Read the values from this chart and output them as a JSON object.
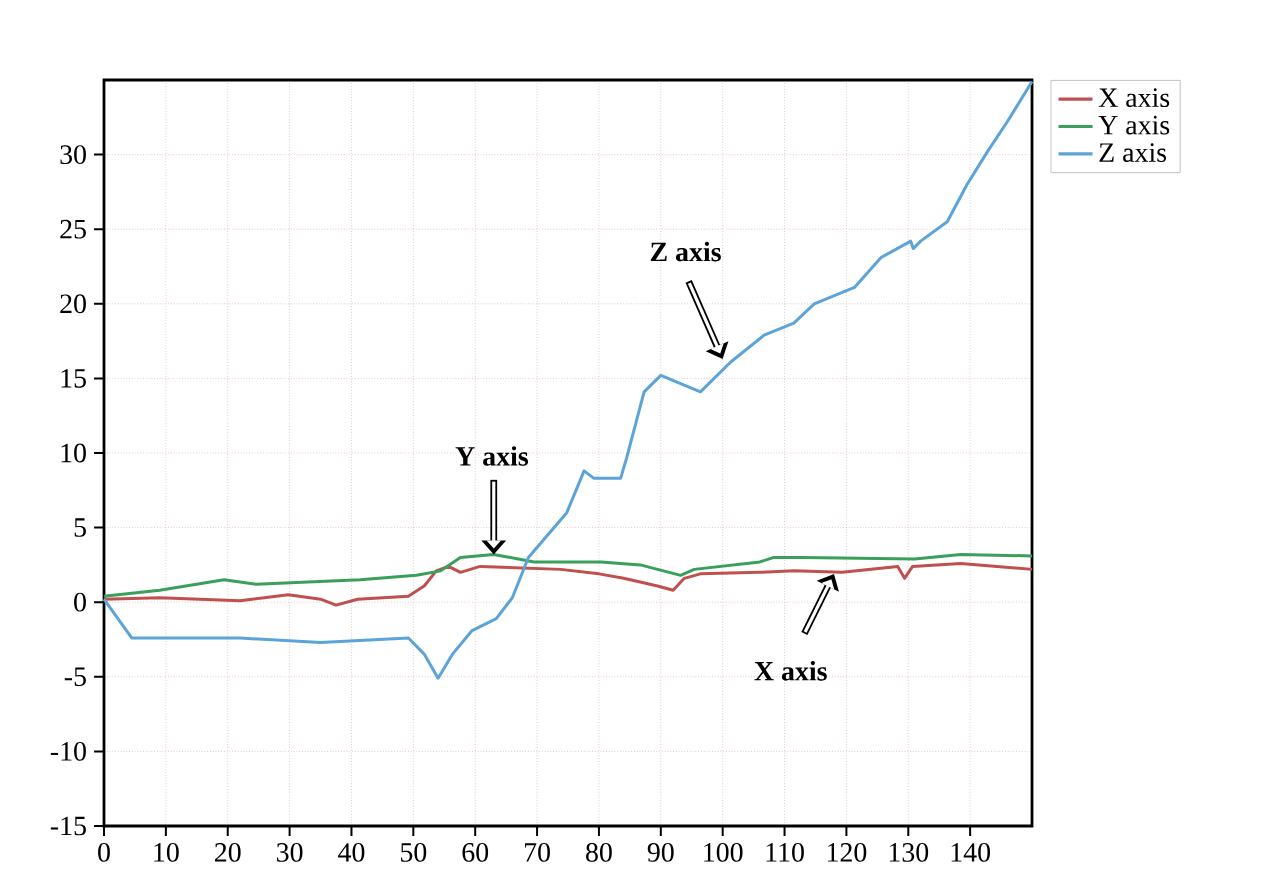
{
  "chart_data": {
    "type": "line",
    "xlim": [
      0,
      150
    ],
    "ylim": [
      -15,
      35
    ],
    "xticks": [
      0,
      10,
      20,
      30,
      40,
      50,
      60,
      70,
      80,
      90,
      100,
      110,
      120,
      130,
      140
    ],
    "yticks": [
      -15,
      -10,
      -5,
      0,
      5,
      10,
      15,
      20,
      25,
      30
    ],
    "grid": true,
    "legend": "top right",
    "line_style": "solid",
    "marker": "none",
    "series": [
      {
        "name": "X axis",
        "color": "#c0504d",
        "x": [
          0,
          9,
          22,
          29.8,
          35,
          37.5,
          41,
          49.2,
          51.8,
          53.7,
          55.7,
          57.6,
          60.8,
          73.8,
          80,
          84,
          89.3,
          92,
          93.8,
          96.4,
          106,
          111.5,
          119.3,
          128.3,
          129.4,
          130.7,
          138.5,
          150
        ],
        "values": [
          0.2,
          0.3,
          0.1,
          0.5,
          0.2,
          -0.2,
          0.2,
          0.4,
          1.1,
          2.1,
          2.4,
          2.0,
          2.4,
          2.2,
          1.9,
          1.6,
          1.1,
          0.8,
          1.6,
          1.9,
          2.0,
          2.1,
          2.0,
          2.4,
          1.6,
          2.4,
          2.6,
          2.2
        ]
      },
      {
        "name": "Y axis",
        "color": "#3a9f5a",
        "x": [
          0,
          9,
          19.4,
          24.6,
          41.4,
          50.5,
          54.4,
          57.6,
          63,
          69.5,
          80.3,
          86.7,
          93.2,
          95.4,
          106,
          108.3,
          113,
          131,
          138.5,
          150
        ],
        "values": [
          0.4,
          0.8,
          1.5,
          1.2,
          1.5,
          1.8,
          2.1,
          3.0,
          3.2,
          2.7,
          2.7,
          2.5,
          1.8,
          2.2,
          2.7,
          3.0,
          3.0,
          2.9,
          3.2,
          3.1
        ]
      },
      {
        "name": "Z axis",
        "color": "#5ba3d8",
        "x": [
          0,
          4.5,
          22,
          35,
          49.2,
          51.8,
          54,
          56.3,
          59.5,
          63.4,
          66,
          68.6,
          74.8,
          77.6,
          79.2,
          83.5,
          84.5,
          87.3,
          90,
          96.4,
          101.3,
          106.7,
          111.5,
          114.8,
          121.3,
          125.6,
          130.4,
          130.8,
          132,
          136.3,
          139.5,
          142.8,
          146,
          150
        ],
        "values": [
          0.2,
          -2.4,
          -2.4,
          -2.7,
          -2.4,
          -3.5,
          -5.1,
          -3.5,
          -1.9,
          -1.1,
          0.3,
          3.0,
          6.0,
          8.8,
          8.3,
          8.3,
          9.7,
          14.1,
          15.2,
          14.1,
          16.1,
          17.9,
          18.7,
          20.0,
          21.1,
          23.1,
          24.2,
          23.7,
          24.2,
          25.5,
          28.0,
          30.2,
          32.2,
          34.9
        ]
      }
    ],
    "annotations": [
      {
        "text": "Y axis",
        "x": 63,
        "y": 3.2
      },
      {
        "text": "Z axis",
        "x": 100,
        "y": 16.3
      },
      {
        "text": "X axis",
        "x": 118,
        "y": 1.9
      }
    ]
  }
}
